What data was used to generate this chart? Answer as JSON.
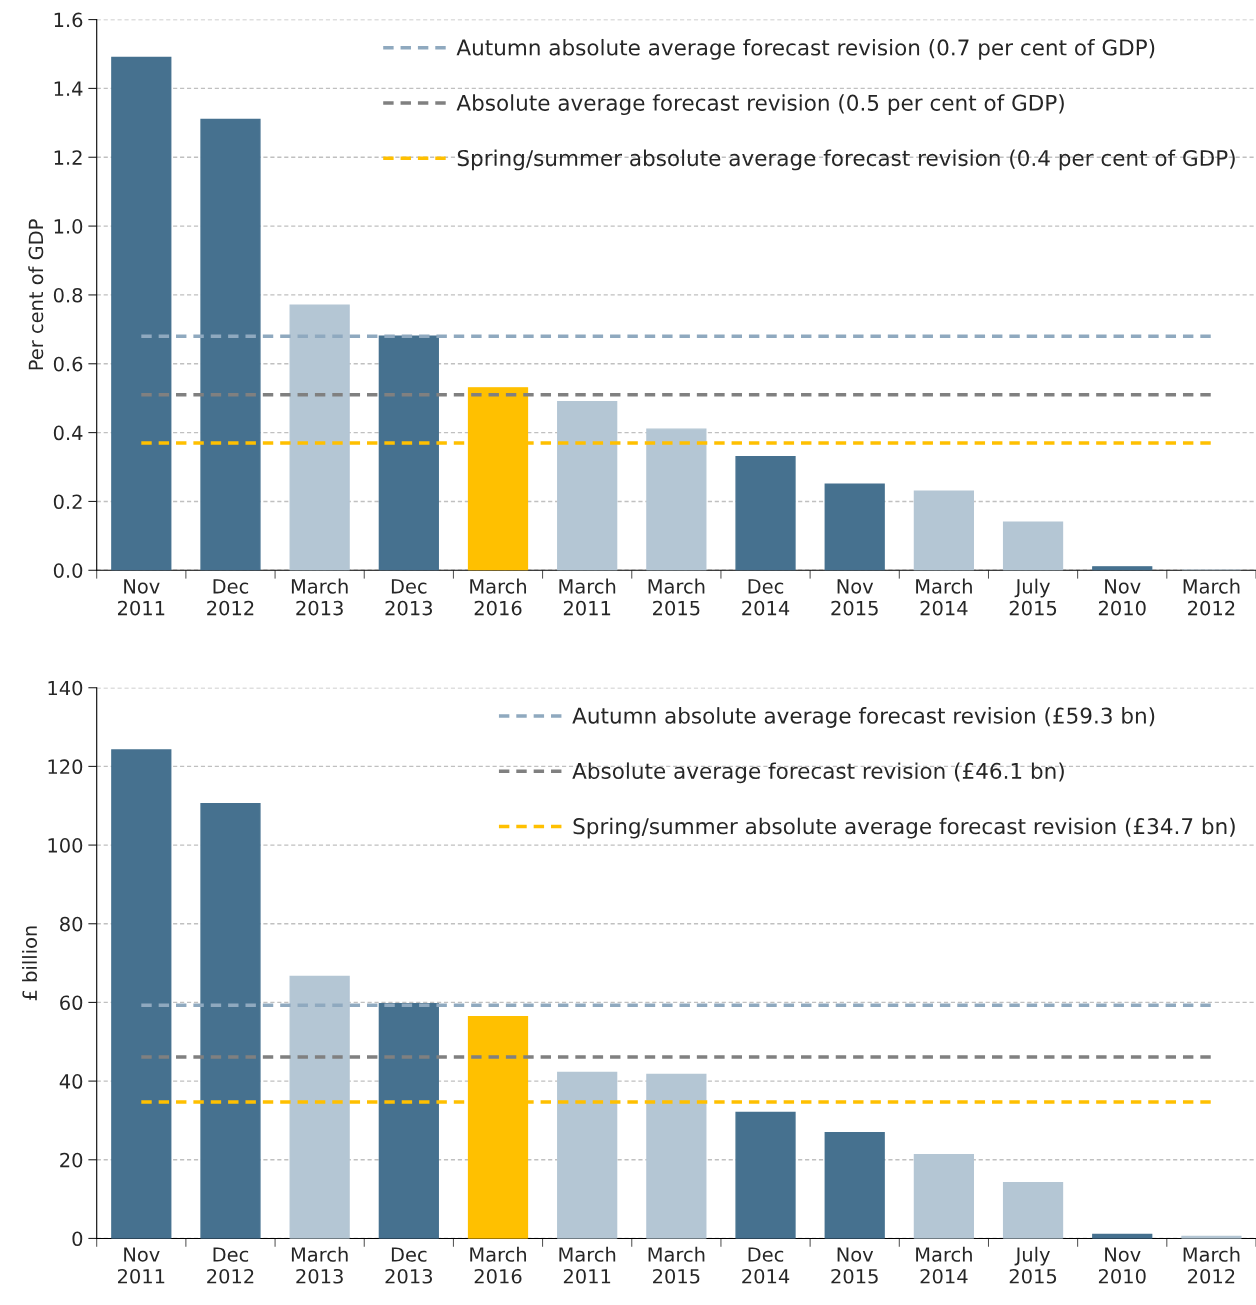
{
  "chart_data": [
    {
      "type": "bar",
      "ylabel": "Per cent of GDP",
      "categories": [
        "Nov\n2011",
        "Dec\n2012",
        "March\n2013",
        "Dec\n2013",
        "March\n2016",
        "March\n2011",
        "March\n2015",
        "Dec\n2014",
        "Nov\n2015",
        "March\n2014",
        "July\n2015",
        "Nov\n2010",
        "March\n2012"
      ],
      "values": [
        1.49,
        1.31,
        0.77,
        0.68,
        0.53,
        0.49,
        0.41,
        0.33,
        0.25,
        0.23,
        0.14,
        0.01,
        0.0
      ],
      "colors": [
        "#46718f",
        "#46718f",
        "#b4c6d4",
        "#46718f",
        "#ffc000",
        "#b4c6d4",
        "#b4c6d4",
        "#46718f",
        "#46718f",
        "#b4c6d4",
        "#b4c6d4",
        "#46718f",
        "#b4c6d4"
      ],
      "ylim": [
        0,
        1.6
      ],
      "yticks": [
        {
          "value": 0,
          "label": "0.0"
        },
        {
          "value": 0.2,
          "label": "0.2"
        },
        {
          "value": 0.4,
          "label": "0.4"
        },
        {
          "value": 0.6,
          "label": "0.6"
        },
        {
          "value": 0.8,
          "label": "0.8"
        },
        {
          "value": 1.0,
          "label": "1.0"
        },
        {
          "value": 1.2,
          "label": "1.2"
        },
        {
          "value": 1.4,
          "label": "1.4"
        },
        {
          "value": 1.6,
          "label": "1.6"
        }
      ],
      "ref_lines": [
        {
          "axis": "y",
          "value": 0.68,
          "label": "Autumn absolute average forecast revision (0.7 per cent of GDP)",
          "color": "#8fa9bf",
          "line_style": "dashed"
        },
        {
          "axis": "y",
          "value": 0.51,
          "label": "Absolute average forecast revision (0.5 per cent of GDP)",
          "color": "#808080",
          "line_style": "dashed"
        },
        {
          "axis": "y",
          "value": 0.37,
          "label": "Spring/summer absolute average forecast revision (0.4 per cent of GDP)",
          "color": "#ffc000",
          "line_style": "dashed"
        }
      ],
      "grid": "y",
      "legend": "top right"
    },
    {
      "type": "bar",
      "ylabel": "£ billion",
      "categories": [
        "Nov\n2011",
        "Dec\n2012",
        "March\n2013",
        "Dec\n2013",
        "March\n2016",
        "March\n2011",
        "March\n2015",
        "Dec\n2014",
        "Nov\n2015",
        "March\n2014",
        "July\n2015",
        "Nov\n2010",
        "March\n2012"
      ],
      "values": [
        124.2,
        110.5,
        66.6,
        59.7,
        56.4,
        42.2,
        41.7,
        32.0,
        26.9,
        21.3,
        14.2,
        1.0,
        0.5
      ],
      "colors": [
        "#46718f",
        "#46718f",
        "#b4c6d4",
        "#46718f",
        "#ffc000",
        "#b4c6d4",
        "#b4c6d4",
        "#46718f",
        "#46718f",
        "#b4c6d4",
        "#b4c6d4",
        "#46718f",
        "#b4c6d4"
      ],
      "ylim": [
        0,
        140
      ],
      "yticks": [
        0,
        20,
        40,
        60,
        80,
        100,
        120,
        140
      ],
      "ref_lines": [
        {
          "axis": "y",
          "value": 59.3,
          "label": "Autumn absolute average forecast revision (£59.3 bn)",
          "color": "#8fa9bf",
          "line_style": "dashed"
        },
        {
          "axis": "y",
          "value": 46.1,
          "label": "Absolute average forecast revision (£46.1 bn)",
          "color": "#808080",
          "line_style": "dashed"
        },
        {
          "axis": "y",
          "value": 34.7,
          "label": "Spring/summer absolute average forecast revision (£34.7 bn)",
          "color": "#ffc000",
          "line_style": "dashed"
        }
      ],
      "grid": "y",
      "legend": "top right"
    }
  ]
}
